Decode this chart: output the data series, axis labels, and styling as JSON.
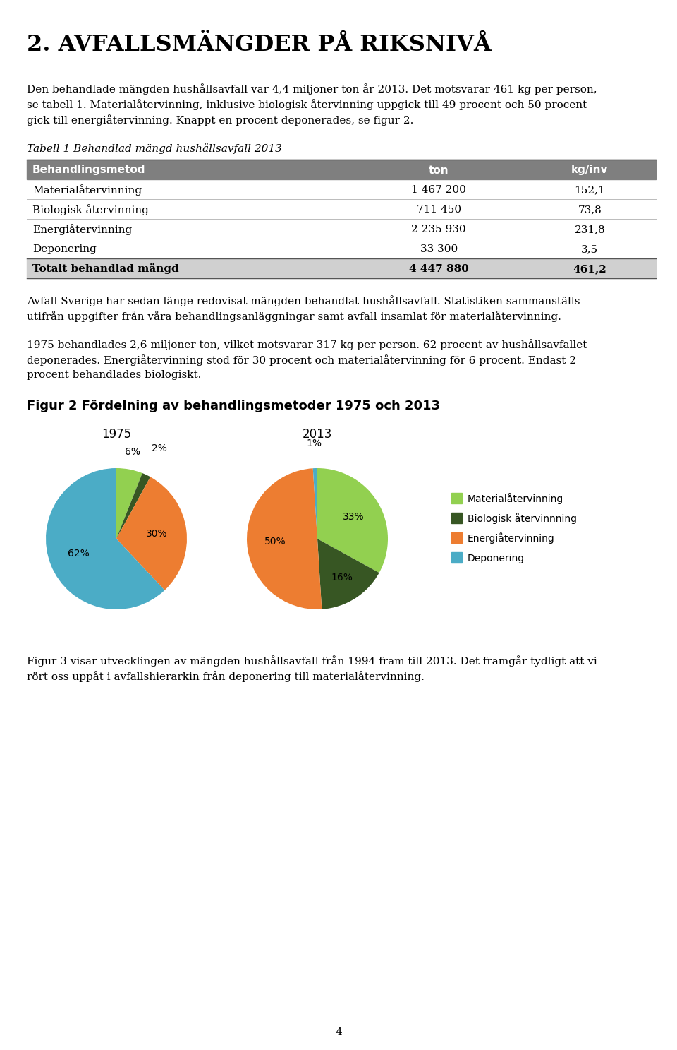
{
  "page_title": "2. AVFALLSMÄNGDER PÅ RIKSNIVÅ",
  "table_title": "Tabell 1 Behandlad mängd hushållsavfall 2013",
  "table_header": [
    "Behandlingsmetod",
    "ton",
    "kg/inv"
  ],
  "table_rows": [
    [
      "Materialåtervinning",
      "1 467 200",
      "152,1"
    ],
    [
      "Biologisk återvinning",
      "711 450",
      "73,8"
    ],
    [
      "Energiåtervinning",
      "2 235 930",
      "231,8"
    ],
    [
      "Deponering",
      "33 300",
      "3,5"
    ],
    [
      "Totalt behandlad mängd",
      "4 447 880",
      "461,2"
    ]
  ],
  "table_header_bg": "#7f7f7f",
  "fig2_title": "Figur 2 Fördelning av behandlingsmetoder 1975 och 2013",
  "pie1975_label": "1975",
  "pie2013_label": "2013",
  "pie1975_values": [
    6,
    2,
    30,
    62
  ],
  "pie1975_pct_labels": [
    "6%",
    "2%",
    "30%",
    "62%"
  ],
  "pie2013_values": [
    33,
    16,
    50,
    1
  ],
  "pie2013_pct_labels": [
    "33%",
    "16%",
    "50%",
    "1%"
  ],
  "pie_colors": [
    "#92d050",
    "#375623",
    "#ed7d31",
    "#4bacc6"
  ],
  "legend_labels": [
    "Materialåtervinning",
    "Biologisk återvinnning",
    "Energiåtervinning",
    "Deponering"
  ],
  "legend_colors": [
    "#92d050",
    "#375623",
    "#ed7d31",
    "#4bacc6"
  ],
  "page_number": "4",
  "bg_color": "#ffffff",
  "para1_lines": [
    "Den behandlade mängden hushållsavfall var 4,4 miljoner ton år 2013. Det motsvarar 461 kg per person,",
    "se tabell 1. Materialåtervinning, inklusive biologisk återvinning uppgick till 49 procent och 50 procent",
    "gick till energiåtervinning. Knappt en procent deponerades, se figur 2."
  ],
  "para2_lines": [
    "Avfall Sverige har sedan länge redovisat mängden behandlat hushållsavfall. Statistiken sammanställs",
    "utifrån uppgifter från våra behandlingsanläggningar samt avfall insamlat för materialåtervinning."
  ],
  "para3_lines": [
    "1975 behandlades 2,6 miljoner ton, vilket motsvarar 317 kg per person. 62 procent av hushållsavfallet",
    "deponerades. Energiåtervinning stod för 30 procent och materialåtervinning för 6 procent. Endast 2",
    "procent behandlades biologiskt."
  ],
  "para4_lines": [
    "Figur 3 visar utvecklingen av mängden hushållsavfall från 1994 fram till 2013. Det framgår tydligt att vi",
    "rört oss uppåt i avfallshierarkin från deponering till materialåtervinning."
  ]
}
